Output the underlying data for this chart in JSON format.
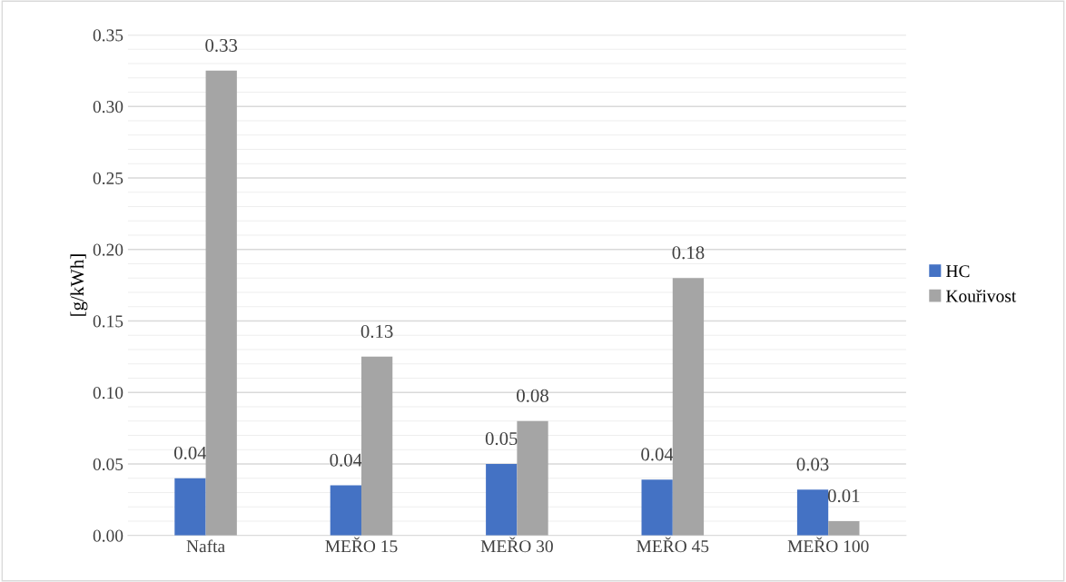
{
  "chart_data": {
    "type": "bar",
    "ylabel": "[g/kWh]",
    "categories": [
      "Nafta",
      "MEŘO 15",
      "MEŘO 30",
      "MEŘO 45",
      "MEŘO 100"
    ],
    "series": [
      {
        "name": "HC",
        "color": "#4472c4",
        "values": [
          0.04,
          0.035,
          0.05,
          0.039,
          0.032
        ],
        "value_labels": [
          "0.04",
          "0.04",
          "0.05",
          "0.04",
          "0.03"
        ]
      },
      {
        "name": "Kouřivost",
        "color": "#a5a5a5",
        "values": [
          0.325,
          0.125,
          0.08,
          0.18,
          0.01
        ],
        "value_labels": [
          "0.33",
          "0.13",
          "0.08",
          "0.18",
          "0.01"
        ]
      }
    ],
    "ylim": [
      0,
      0.35
    ],
    "yticks": [
      {
        "value": 0,
        "label": "0.00"
      },
      {
        "value": 0.05,
        "label": "0.05"
      },
      {
        "value": 0.1,
        "label": "0.10"
      },
      {
        "value": 0.15,
        "label": "0.15"
      },
      {
        "value": 0.2,
        "label": "0.20"
      },
      {
        "value": 0.25,
        "label": "0.25"
      },
      {
        "value": 0.3,
        "label": "0.30"
      },
      {
        "value": 0.35,
        "label": "0.35"
      }
    ],
    "grid": "y",
    "legend": "right"
  }
}
